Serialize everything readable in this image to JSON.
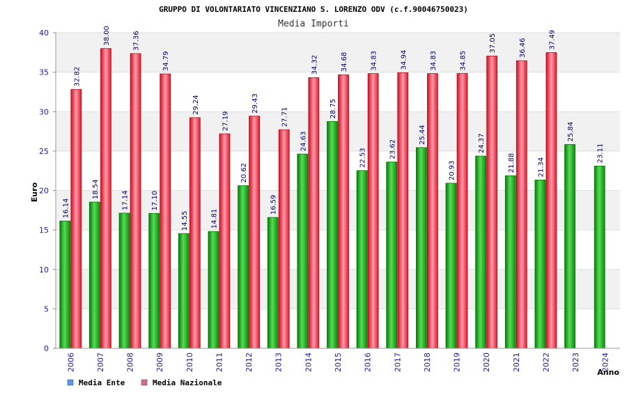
{
  "chart_data": {
    "type": "bar",
    "title": "GRUPPO DI VOLONTARIATO VINCENZIANO S. LORENZO ODV (c.f.90046750023)",
    "subtitle": "Media Importi",
    "xlabel": "Anno",
    "ylabel": "Euro",
    "ylim": [
      0,
      40
    ],
    "yticks": [
      0,
      5,
      10,
      15,
      20,
      25,
      30,
      35,
      40
    ],
    "grid": true,
    "legend_position": "bottom-left",
    "categories": [
      "2006",
      "2007",
      "2008",
      "2009",
      "2010",
      "2011",
      "2012",
      "2013",
      "2014",
      "2015",
      "2016",
      "2017",
      "2018",
      "2019",
      "2020",
      "2021",
      "2022",
      "2023",
      "2024"
    ],
    "series": [
      {
        "name": "Media Ente",
        "color": "#11aa11",
        "legend_color": "#5599ee",
        "values": [
          16.14,
          18.54,
          17.14,
          17.1,
          14.55,
          14.81,
          20.62,
          16.59,
          24.63,
          28.75,
          22.53,
          23.62,
          25.44,
          20.93,
          24.37,
          21.88,
          21.34,
          25.84,
          23.11
        ],
        "labels": [
          "16.14",
          "18.54",
          "17.14",
          "17.10",
          "14.55",
          "14.81",
          "20.62",
          "16.59",
          "24.63",
          "28.75",
          "22.53",
          "23.62",
          "25.44",
          "20.93",
          "24.37",
          "21.88",
          "21.34",
          "25.84",
          "23.11"
        ]
      },
      {
        "name": "Media Nazionale",
        "color": "#ee2233",
        "legend_color": "#dd6699",
        "values": [
          32.82,
          38.0,
          37.36,
          34.79,
          29.24,
          27.19,
          29.43,
          27.71,
          34.32,
          34.68,
          34.83,
          34.94,
          34.83,
          34.85,
          37.05,
          36.46,
          37.49,
          null,
          null
        ],
        "labels": [
          "32.82",
          "38.00",
          "37.36",
          "34.79",
          "29.24",
          "27.19",
          "29.43",
          "27.71",
          "34.32",
          "34.68",
          "34.83",
          "34.94",
          "34.83",
          "34.85",
          "37.05",
          "36.46",
          "37.49",
          "",
          ""
        ]
      }
    ]
  }
}
